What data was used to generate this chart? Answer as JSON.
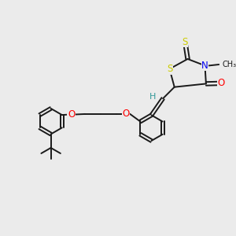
{
  "background_color": "#ebebeb",
  "bond_color": "#1a1a1a",
  "atom_colors": {
    "O": "#ff0000",
    "N": "#0000ee",
    "S": "#cccc00",
    "H": "#339999",
    "C": "#1a1a1a"
  },
  "figsize": [
    3.0,
    3.0
  ],
  "dpi": 100,
  "xlim": [
    0,
    10
  ],
  "ylim": [
    0,
    10
  ]
}
